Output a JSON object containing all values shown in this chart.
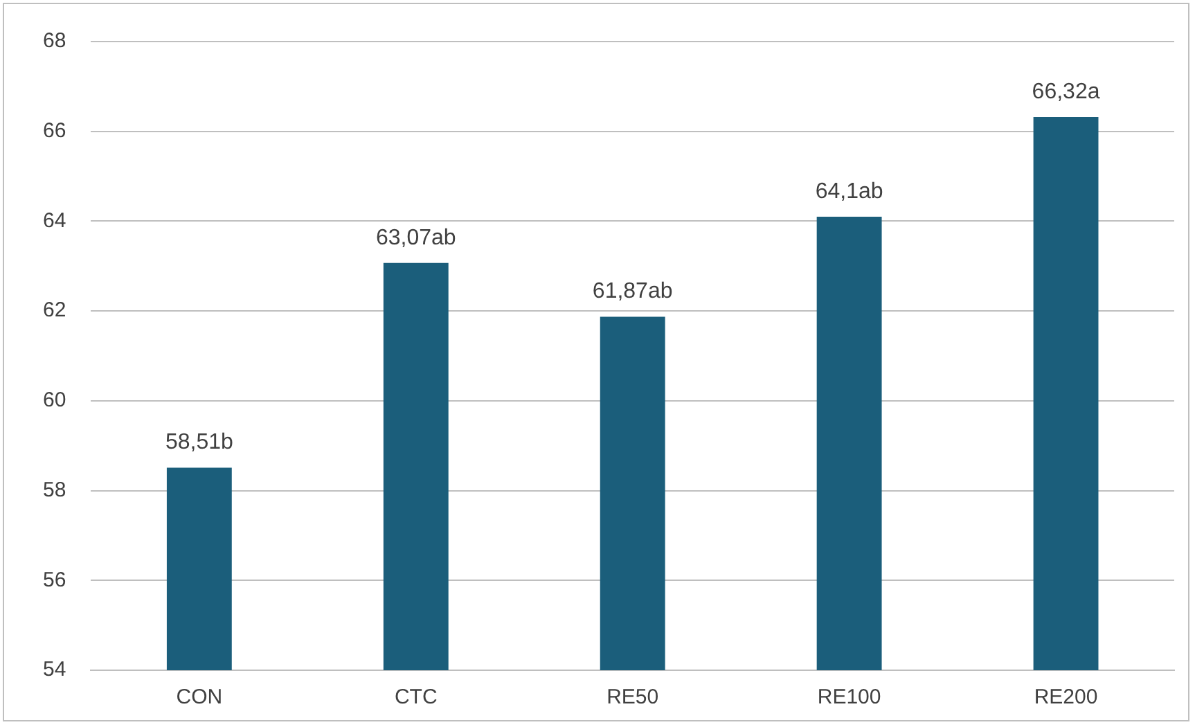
{
  "chart_data": {
    "type": "bar",
    "categories": [
      "CON",
      "CTC",
      "RE50",
      "RE100",
      "RE200"
    ],
    "values": [
      58.51,
      63.07,
      61.87,
      64.1,
      66.32
    ],
    "value_labels": [
      "58,51b",
      "63,07ab",
      "61,87ab",
      "64,1ab",
      "66,32a"
    ],
    "color": "#1b5e7b",
    "ylim": [
      54,
      68
    ],
    "yticks": [
      54,
      56,
      58,
      60,
      62,
      64,
      66,
      68
    ],
    "grid": "y",
    "legend": false
  }
}
